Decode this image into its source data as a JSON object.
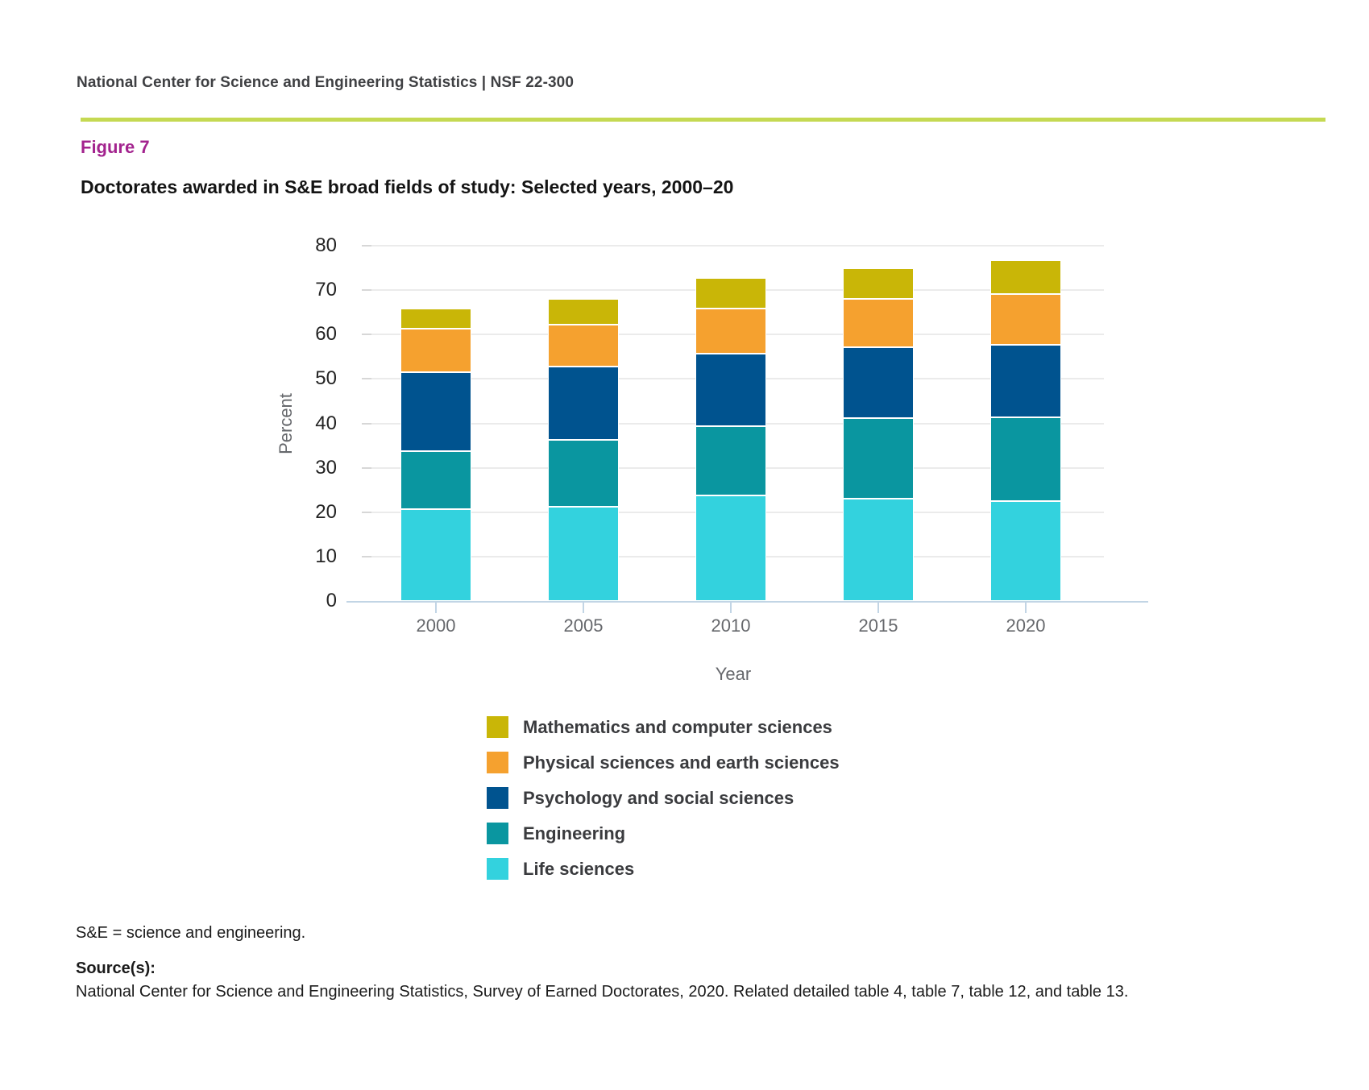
{
  "header": {
    "text": "National Center for Science and Engineering Statistics  |  NSF 22-300"
  },
  "figure": {
    "label": "Figure 7",
    "title": "Doctorates awarded in S&E broad fields of study: Selected years, 2000–20"
  },
  "chart_data": {
    "type": "bar",
    "stacked": true,
    "title": "Doctorates awarded in S&E broad fields of study: Selected years, 2000–20",
    "categories": [
      "2000",
      "2005",
      "2010",
      "2015",
      "2020"
    ],
    "series": [
      {
        "name": "Mathematics and computer sciences",
        "color": "#c9b607",
        "values": [
          4.5,
          5.8,
          6.8,
          6.9,
          7.6
        ]
      },
      {
        "name": "Physical sciences and earth sciences",
        "color": "#f5a12f",
        "values": [
          9.8,
          9.6,
          10.2,
          10.8,
          11.5
        ]
      },
      {
        "name": "Psychology and social sciences",
        "color": "#00538f",
        "values": [
          17.8,
          16.4,
          16.3,
          16.1,
          16.2
        ]
      },
      {
        "name": "Engineering",
        "color": "#0a96a0",
        "values": [
          13.2,
          15.1,
          15.7,
          18.0,
          18.9
        ]
      },
      {
        "name": "Life sciences",
        "color": "#33d2de",
        "values": [
          20.6,
          21.2,
          23.7,
          23.1,
          22.5
        ]
      }
    ],
    "stack_order": "bottom-to-top: Life sciences, Engineering, Psychology and social sciences, Physical sciences and earth sciences, Mathematics and computer sciences",
    "stack_totals": [
      65.9,
      68.1,
      72.7,
      74.9,
      76.7
    ],
    "xlabel": "Year",
    "ylabel": "Percent",
    "ylim": [
      0,
      80
    ],
    "ytick_step": 10,
    "grid": true,
    "legend_position": "below-chart-left"
  },
  "colors": {
    "header_rule": "#c5d952",
    "figure_label": "#a3238e",
    "gridline": "#ebebeb",
    "axis_line": "#c2d5e5",
    "axis_text": "#66686c"
  },
  "footnotes": {
    "abbreviation": "S&E = science and engineering.",
    "source_label": "Source(s):",
    "source_text": "National Center for Science and Engineering Statistics, Survey of Earned Doctorates, 2020. Related detailed table 4, table 7, table 12, and table 13."
  }
}
